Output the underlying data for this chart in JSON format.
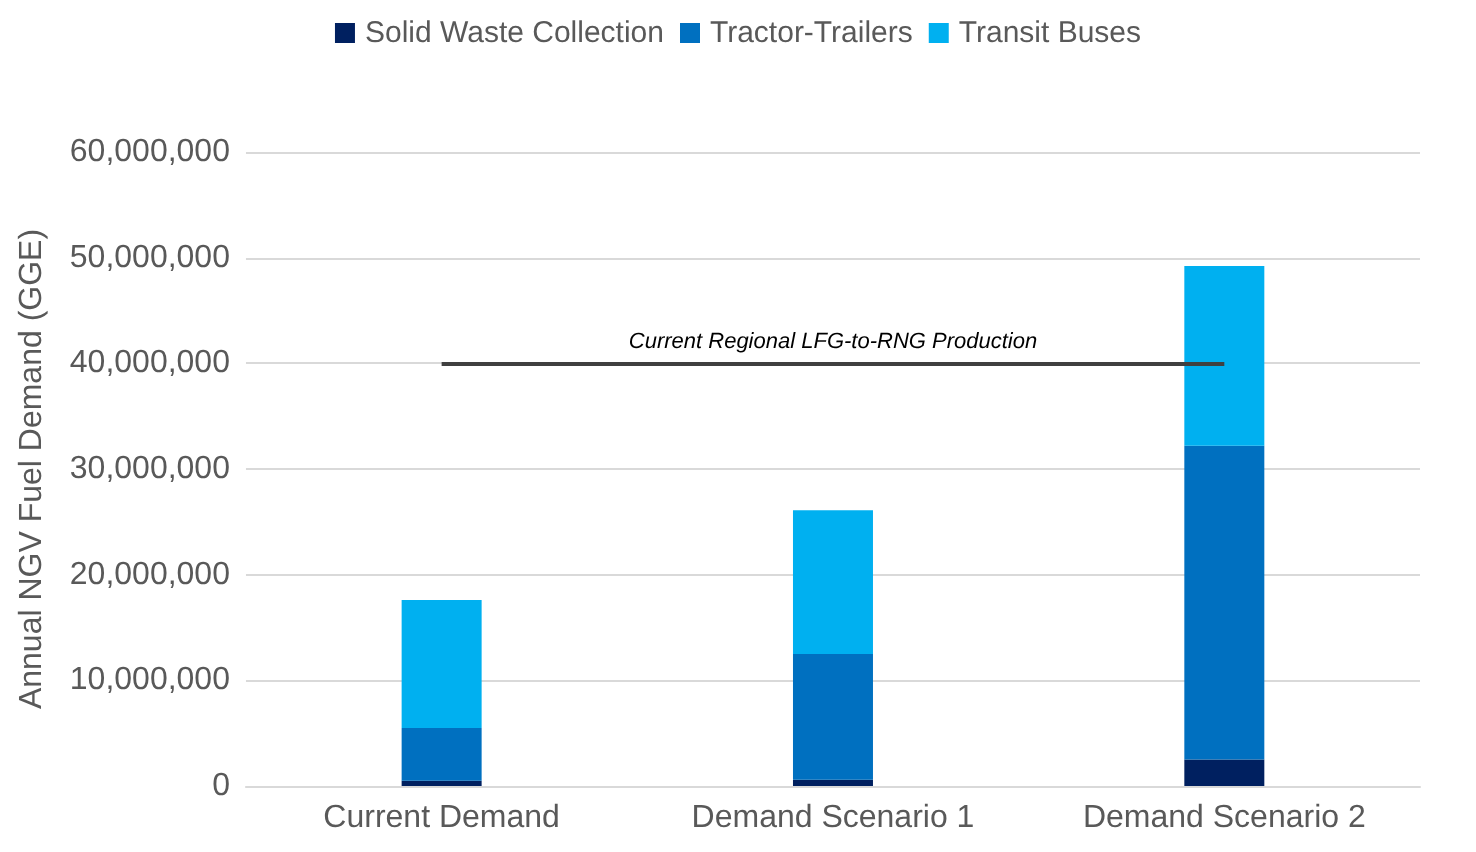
{
  "chart_data": {
    "type": "bar",
    "stacked": true,
    "ylabel": "Annual NGV Fuel Demand (GGE)",
    "categories": [
      "Current Demand",
      "Demand Scenario 1",
      "Demand Scenario 2"
    ],
    "series": [
      {
        "name": "Solid Waste Collection",
        "color": "#002060",
        "values": [
          500000,
          600000,
          2500000
        ]
      },
      {
        "name": "Tractor-Trailers",
        "color": "#0070c0",
        "values": [
          5000000,
          11900000,
          29700000
        ]
      },
      {
        "name": "Transit Buses",
        "color": "#00b0f0",
        "values": [
          12100000,
          13600000,
          17000000
        ]
      }
    ],
    "ylim": [
      0,
      60000000
    ],
    "yticks": [
      0,
      {
        "value": 10000000,
        "label": "10,000,000"
      },
      {
        "value": 20000000,
        "label": "20,000,000"
      },
      {
        "value": 30000000,
        "label": "30,000,000"
      },
      {
        "value": 40000000,
        "label": "40,000,000"
      },
      {
        "value": 50000000,
        "label": "50,000,000"
      },
      {
        "value": 60000000,
        "label": "60,000,000"
      }
    ],
    "grid": "y",
    "legend": "top",
    "ref_lines": [
      {
        "axis": "y",
        "value": 40000000,
        "label": "Current Regional LFG-to-RNG Production",
        "color": "#404040"
      }
    ]
  }
}
